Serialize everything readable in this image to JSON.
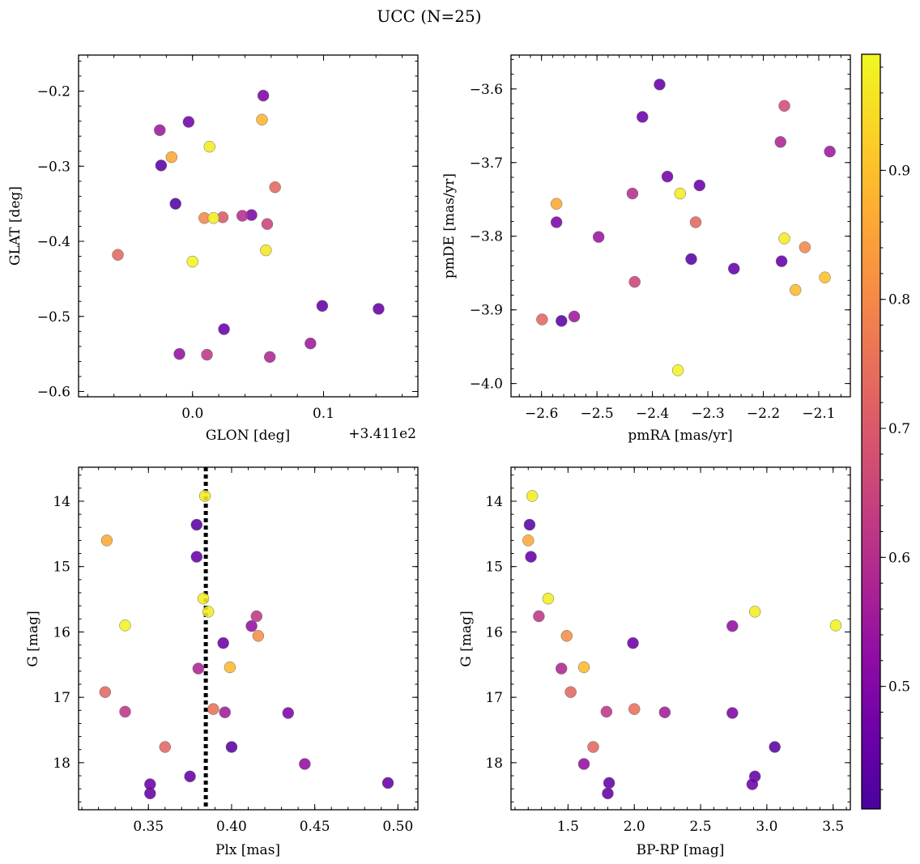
{
  "figure": {
    "title": "UCC (N=25)"
  },
  "colorbar": {
    "colormap": "plasma",
    "range": [
      0.405,
      0.99
    ],
    "ticks": [
      0.5,
      0.6,
      0.7,
      0.8,
      0.9
    ],
    "tick_labels": [
      "0.5",
      "0.6",
      "0.7",
      "0.8",
      "0.9"
    ]
  },
  "chart_data": [
    {
      "id": "glon-glat",
      "type": "scatter",
      "title": "",
      "xlabel": "GLON [deg]",
      "ylabel": "GLAT [deg]",
      "x_offset_text": "+3.411e2",
      "xlim": [
        -0.087,
        0.172
      ],
      "ylim": [
        -0.607,
        -0.152
      ],
      "invert_y": false,
      "x_ticks": [
        0.0,
        0.1
      ],
      "x_tick_labels": [
        "0.0",
        "0.1"
      ],
      "y_ticks": [
        -0.2,
        -0.3,
        -0.4,
        -0.5,
        -0.6
      ],
      "y_tick_labels": [
        "−0.2",
        "−0.3",
        "−0.4",
        "−0.5",
        "−0.6"
      ],
      "points": [
        {
          "x": 0.054,
          "y": -0.206,
          "c": 0.49
        },
        {
          "x": 0.053,
          "y": -0.238,
          "c": 0.88
        },
        {
          "x": -0.025,
          "y": -0.252,
          "c": 0.55
        },
        {
          "x": -0.003,
          "y": -0.241,
          "c": 0.47
        },
        {
          "x": 0.013,
          "y": -0.274,
          "c": 0.97
        },
        {
          "x": -0.016,
          "y": -0.288,
          "c": 0.86
        },
        {
          "x": -0.024,
          "y": -0.299,
          "c": 0.43
        },
        {
          "x": 0.063,
          "y": -0.328,
          "c": 0.73
        },
        {
          "x": -0.013,
          "y": -0.35,
          "c": 0.42
        },
        {
          "x": 0.009,
          "y": -0.369,
          "c": 0.8
        },
        {
          "x": 0.016,
          "y": -0.369,
          "c": 0.97
        },
        {
          "x": 0.023,
          "y": -0.368,
          "c": 0.7
        },
        {
          "x": 0.038,
          "y": -0.366,
          "c": 0.6
        },
        {
          "x": 0.045,
          "y": -0.365,
          "c": 0.49
        },
        {
          "x": 0.057,
          "y": -0.377,
          "c": 0.65
        },
        {
          "x": 0.056,
          "y": -0.412,
          "c": 0.96
        },
        {
          "x": -0.057,
          "y": -0.418,
          "c": 0.73
        },
        {
          "x": 0.0,
          "y": -0.427,
          "c": 0.98
        },
        {
          "x": 0.099,
          "y": -0.486,
          "c": 0.45
        },
        {
          "x": 0.142,
          "y": -0.49,
          "c": 0.45
        },
        {
          "x": 0.024,
          "y": -0.517,
          "c": 0.46
        },
        {
          "x": 0.09,
          "y": -0.536,
          "c": 0.55
        },
        {
          "x": -0.01,
          "y": -0.55,
          "c": 0.53
        },
        {
          "x": 0.011,
          "y": -0.551,
          "c": 0.62
        },
        {
          "x": 0.059,
          "y": -0.554,
          "c": 0.58
        }
      ]
    },
    {
      "id": "pm",
      "type": "scatter",
      "title": "",
      "xlabel": "pmRA [mas/yr]",
      "ylabel": "pmDE [mas/yr]",
      "xlim": [
        -2.655,
        -2.043
      ],
      "ylim": [
        -4.018,
        -3.554
      ],
      "invert_y": false,
      "x_ticks": [
        -2.6,
        -2.5,
        -2.4,
        -2.3,
        -2.2,
        -2.1
      ],
      "x_tick_labels": [
        "−2.6",
        "−2.5",
        "−2.4",
        "−2.3",
        "−2.2",
        "−2.1"
      ],
      "y_ticks": [
        -3.6,
        -3.7,
        -3.8,
        -3.9,
        -4.0
      ],
      "y_tick_labels": [
        "−3.6",
        "−3.7",
        "−3.8",
        "−3.9",
        "−4.0"
      ],
      "points": [
        {
          "x": -2.387,
          "y": -3.594,
          "c": 0.45
        },
        {
          "x": -2.162,
          "y": -3.623,
          "c": 0.67
        },
        {
          "x": -2.418,
          "y": -3.638,
          "c": 0.46
        },
        {
          "x": -2.169,
          "y": -3.672,
          "c": 0.58
        },
        {
          "x": -2.08,
          "y": -3.685,
          "c": 0.55
        },
        {
          "x": -2.373,
          "y": -3.719,
          "c": 0.47
        },
        {
          "x": -2.315,
          "y": -3.731,
          "c": 0.46
        },
        {
          "x": -2.436,
          "y": -3.742,
          "c": 0.6
        },
        {
          "x": -2.35,
          "y": -3.742,
          "c": 0.97
        },
        {
          "x": -2.573,
          "y": -3.756,
          "c": 0.86
        },
        {
          "x": -2.573,
          "y": -3.781,
          "c": 0.49
        },
        {
          "x": -2.322,
          "y": -3.781,
          "c": 0.73
        },
        {
          "x": -2.497,
          "y": -3.801,
          "c": 0.54
        },
        {
          "x": -2.162,
          "y": -3.803,
          "c": 0.97
        },
        {
          "x": -2.125,
          "y": -3.815,
          "c": 0.8
        },
        {
          "x": -2.33,
          "y": -3.831,
          "c": 0.43
        },
        {
          "x": -2.167,
          "y": -3.834,
          "c": 0.45
        },
        {
          "x": -2.253,
          "y": -3.844,
          "c": 0.45
        },
        {
          "x": -2.089,
          "y": -3.856,
          "c": 0.9
        },
        {
          "x": -2.432,
          "y": -3.862,
          "c": 0.65
        },
        {
          "x": -2.142,
          "y": -3.873,
          "c": 0.89
        },
        {
          "x": -2.541,
          "y": -3.909,
          "c": 0.55
        },
        {
          "x": -2.599,
          "y": -3.913,
          "c": 0.73
        },
        {
          "x": -2.564,
          "y": -3.915,
          "c": 0.43
        },
        {
          "x": -2.354,
          "y": -3.982,
          "c": 0.98
        }
      ]
    },
    {
      "id": "plx-g",
      "type": "scatter",
      "title": "",
      "xlabel": "Plx [mas]",
      "ylabel": "G [mag]",
      "xlim": [
        0.308,
        0.512
      ],
      "ylim": [
        18.72,
        13.48
      ],
      "invert_y": true,
      "x_ticks": [
        0.35,
        0.4,
        0.45,
        0.5
      ],
      "x_tick_labels": [
        "0.35",
        "0.40",
        "0.45",
        "0.50"
      ],
      "y_ticks": [
        14,
        15,
        16,
        17,
        18
      ],
      "y_tick_labels": [
        "14",
        "15",
        "16",
        "17",
        "18"
      ],
      "vline": {
        "x": 0.3845,
        "style": "dotted",
        "color": "#000000"
      },
      "points": [
        {
          "x": 0.384,
          "y": 13.92,
          "c": 0.97
        },
        {
          "x": 0.379,
          "y": 14.36,
          "c": 0.43
        },
        {
          "x": 0.325,
          "y": 14.6,
          "c": 0.86
        },
        {
          "x": 0.379,
          "y": 14.85,
          "c": 0.45
        },
        {
          "x": 0.383,
          "y": 15.49,
          "c": 0.97
        },
        {
          "x": 0.386,
          "y": 15.69,
          "c": 0.97
        },
        {
          "x": 0.415,
          "y": 15.76,
          "c": 0.62
        },
        {
          "x": 0.412,
          "y": 15.91,
          "c": 0.53
        },
        {
          "x": 0.336,
          "y": 15.9,
          "c": 0.98
        },
        {
          "x": 0.416,
          "y": 16.06,
          "c": 0.81
        },
        {
          "x": 0.395,
          "y": 16.17,
          "c": 0.46
        },
        {
          "x": 0.399,
          "y": 16.54,
          "c": 0.89
        },
        {
          "x": 0.38,
          "y": 16.56,
          "c": 0.58
        },
        {
          "x": 0.324,
          "y": 16.92,
          "c": 0.73
        },
        {
          "x": 0.389,
          "y": 17.18,
          "c": 0.75
        },
        {
          "x": 0.336,
          "y": 17.22,
          "c": 0.62
        },
        {
          "x": 0.396,
          "y": 17.23,
          "c": 0.56
        },
        {
          "x": 0.434,
          "y": 17.24,
          "c": 0.49
        },
        {
          "x": 0.36,
          "y": 17.76,
          "c": 0.73
        },
        {
          "x": 0.4,
          "y": 17.76,
          "c": 0.43
        },
        {
          "x": 0.444,
          "y": 18.02,
          "c": 0.53
        },
        {
          "x": 0.375,
          "y": 18.21,
          "c": 0.45
        },
        {
          "x": 0.494,
          "y": 18.31,
          "c": 0.45
        },
        {
          "x": 0.351,
          "y": 18.33,
          "c": 0.46
        },
        {
          "x": 0.351,
          "y": 18.47,
          "c": 0.45
        }
      ]
    },
    {
      "id": "bprp-g",
      "type": "scatter",
      "title": "",
      "xlabel": "BP-RP [mag]",
      "ylabel": "G [mag]",
      "xlim": [
        1.07,
        3.63
      ],
      "ylim": [
        18.72,
        13.48
      ],
      "invert_y": true,
      "x_ticks": [
        1.5,
        2.0,
        2.5,
        3.0,
        3.5
      ],
      "x_tick_labels": [
        "1.5",
        "2.0",
        "2.5",
        "3.0",
        "3.5"
      ],
      "y_ticks": [
        14,
        15,
        16,
        17,
        18
      ],
      "y_tick_labels": [
        "14",
        "15",
        "16",
        "17",
        "18"
      ],
      "points": [
        {
          "x": 1.23,
          "y": 13.92,
          "c": 0.97
        },
        {
          "x": 1.21,
          "y": 14.36,
          "c": 0.43
        },
        {
          "x": 1.2,
          "y": 14.6,
          "c": 0.86
        },
        {
          "x": 1.22,
          "y": 14.85,
          "c": 0.45
        },
        {
          "x": 1.35,
          "y": 15.49,
          "c": 0.97
        },
        {
          "x": 1.28,
          "y": 15.76,
          "c": 0.62
        },
        {
          "x": 2.91,
          "y": 15.69,
          "c": 0.97
        },
        {
          "x": 2.74,
          "y": 15.91,
          "c": 0.53
        },
        {
          "x": 3.52,
          "y": 15.9,
          "c": 0.98
        },
        {
          "x": 1.49,
          "y": 16.06,
          "c": 0.81
        },
        {
          "x": 1.99,
          "y": 16.17,
          "c": 0.46
        },
        {
          "x": 1.45,
          "y": 16.56,
          "c": 0.58
        },
        {
          "x": 1.62,
          "y": 16.54,
          "c": 0.89
        },
        {
          "x": 1.52,
          "y": 16.92,
          "c": 0.73
        },
        {
          "x": 2.0,
          "y": 17.18,
          "c": 0.75
        },
        {
          "x": 1.79,
          "y": 17.22,
          "c": 0.62
        },
        {
          "x": 2.23,
          "y": 17.23,
          "c": 0.56
        },
        {
          "x": 2.74,
          "y": 17.24,
          "c": 0.49
        },
        {
          "x": 1.69,
          "y": 17.76,
          "c": 0.73
        },
        {
          "x": 3.06,
          "y": 17.76,
          "c": 0.43
        },
        {
          "x": 1.62,
          "y": 18.02,
          "c": 0.53
        },
        {
          "x": 2.91,
          "y": 18.21,
          "c": 0.45
        },
        {
          "x": 1.81,
          "y": 18.31,
          "c": 0.45
        },
        {
          "x": 2.89,
          "y": 18.33,
          "c": 0.46
        },
        {
          "x": 1.8,
          "y": 18.47,
          "c": 0.45
        }
      ]
    }
  ]
}
